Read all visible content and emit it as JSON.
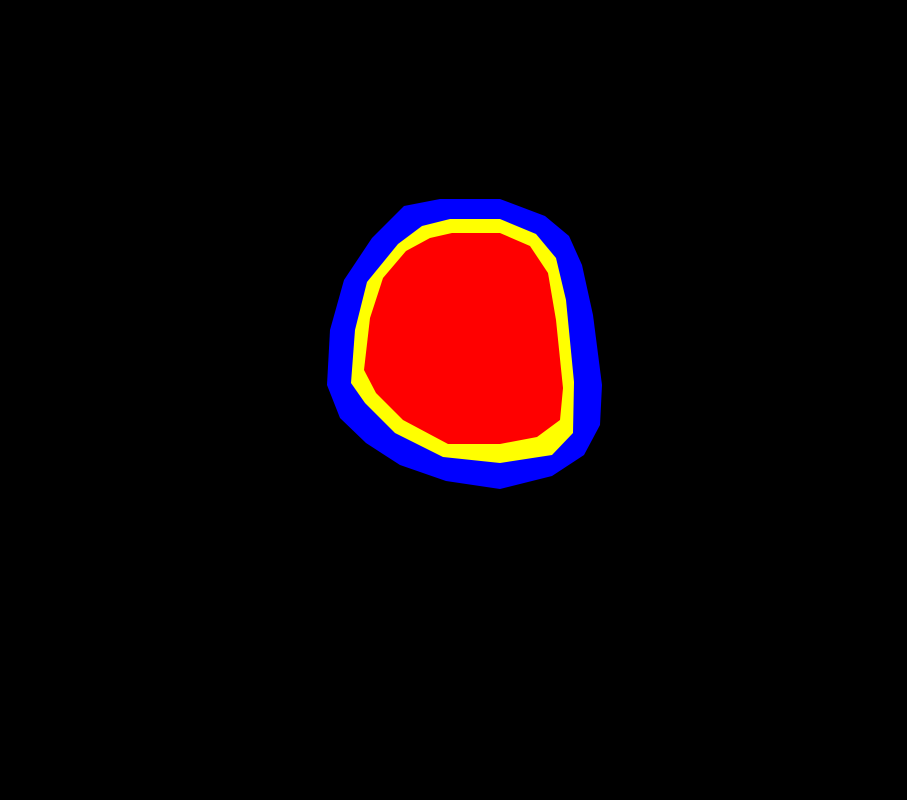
{
  "image": {
    "background_color": "#000000",
    "regions": [
      {
        "id": "outer",
        "label": "",
        "color": "#0000ff"
      },
      {
        "id": "middle",
        "label": "",
        "color": "#ffff00"
      },
      {
        "id": "inner",
        "label": "",
        "color": "#ff0000"
      }
    ]
  }
}
